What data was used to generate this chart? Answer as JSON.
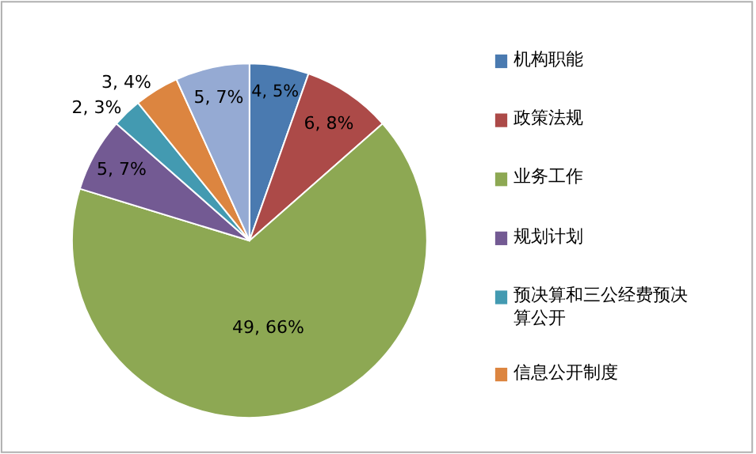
{
  "chart_data": {
    "type": "pie",
    "categories": [
      "机构职能",
      "政策法规",
      "业务工作",
      "规划计划",
      "预决算和三公经费预决算公开",
      "信息公开制度",
      null
    ],
    "values": [
      4,
      6,
      49,
      5,
      2,
      3,
      5
    ],
    "colors": [
      "#4a7ab0",
      "#ac4a48",
      "#8da853",
      "#735a93",
      "#439ab1",
      "#dc8540",
      "#95aad3"
    ],
    "value_labels": [
      "4, 5%",
      "6, 8%",
      "49, 66%",
      "5, 7%",
      "2, 3%",
      "3, 4%",
      "5, 7%"
    ],
    "legend": "right"
  }
}
